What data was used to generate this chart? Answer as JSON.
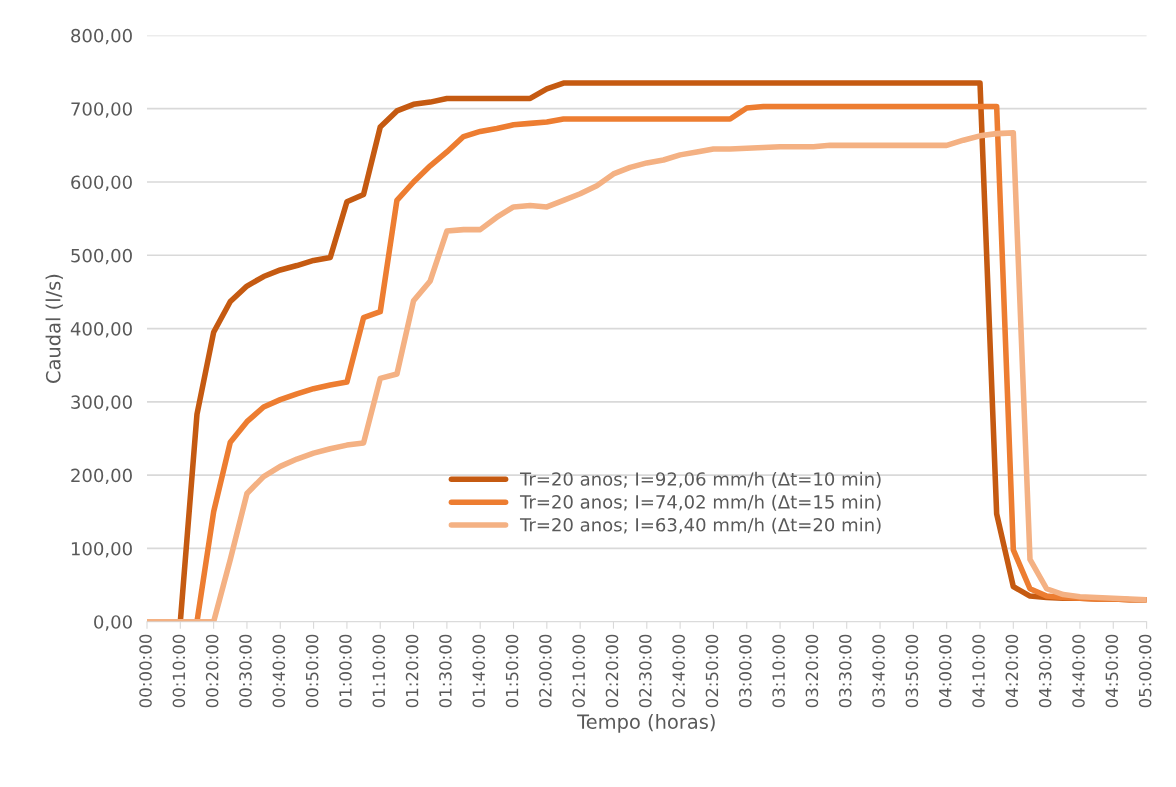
{
  "chart_data": {
    "type": "line",
    "xlabel": "Tempo (horas)",
    "ylabel": "Caudal (l/s)",
    "x": [
      0,
      0.0833,
      0.1667,
      0.25,
      0.3333,
      0.4167,
      0.5,
      0.5833,
      0.6667,
      0.75,
      0.8333,
      0.9167,
      1,
      1.0833,
      1.1667,
      1.25,
      1.3333,
      1.4167,
      1.5,
      1.5833,
      1.6667,
      1.75,
      1.8333,
      1.9167,
      2,
      2.0833,
      2.1667,
      2.25,
      2.3333,
      2.4167,
      2.5,
      2.5833,
      2.6667,
      2.75,
      2.8333,
      2.9167,
      3,
      3.0833,
      3.1667,
      3.25,
      3.3333,
      3.4167,
      3.5,
      3.5833,
      3.6667,
      3.75,
      3.8333,
      3.9167,
      4,
      4.0833,
      4.1667,
      4.25,
      4.3333,
      4.4167,
      4.5,
      4.5833,
      4.6667,
      4.75,
      4.8333,
      4.9167,
      5
    ],
    "series": [
      {
        "name": "Tr=20 anos; I=92,06 mm/h (Δt=10 min)",
        "color": "#c55a11",
        "values": [
          0,
          0,
          0,
          283,
          395,
          437,
          458,
          471,
          480,
          486,
          493,
          497,
          573,
          583,
          675,
          697,
          706,
          709,
          714,
          714,
          714,
          714,
          714,
          714,
          727,
          735,
          735,
          735,
          735,
          735,
          735,
          735,
          735,
          735,
          735,
          735,
          735,
          735,
          735,
          735,
          735,
          735,
          735,
          735,
          735,
          735,
          735,
          735,
          735,
          735,
          735,
          147,
          48,
          35,
          33,
          32,
          32,
          31,
          31,
          30,
          30
        ]
      },
      {
        "name": "Tr=20 anos; I=74,02 mm/h (Δt=15 min)",
        "color": "#ed7d31",
        "values": [
          0,
          0,
          0,
          0,
          150,
          245,
          273,
          293,
          303,
          311,
          318,
          323,
          327,
          415,
          423,
          575,
          600,
          622,
          641,
          662,
          669,
          673,
          678,
          680,
          682,
          686,
          686,
          686,
          686,
          686,
          686,
          686,
          686,
          686,
          686,
          686,
          701,
          703,
          703,
          703,
          703,
          703,
          703,
          703,
          703,
          703,
          703,
          703,
          703,
          703,
          703,
          703,
          98,
          45,
          35,
          33,
          32,
          31,
          31,
          30,
          30
        ]
      },
      {
        "name": "Tr=20 anos; I=63,40 mm/h (Δt=20 min)",
        "color": "#f4b183",
        "values": [
          0,
          0,
          0,
          0,
          0,
          85,
          175,
          198,
          212,
          222,
          230,
          236,
          241,
          244,
          332,
          338,
          438,
          465,
          533,
          535,
          535,
          552,
          566,
          568,
          566,
          575,
          584,
          595,
          611,
          620,
          626,
          630,
          637,
          641,
          645,
          645,
          646,
          647,
          648,
          648,
          648,
          650,
          650,
          650,
          650,
          650,
          650,
          650,
          650,
          657,
          663,
          666,
          667,
          85,
          45,
          37,
          34,
          33,
          32,
          31,
          30
        ]
      }
    ],
    "xlim": [
      0,
      5
    ],
    "xticks": [
      {
        "value": 0,
        "label": "00:00:00"
      },
      {
        "value": 0.1667,
        "label": "00:10:00"
      },
      {
        "value": 0.3333,
        "label": "00:20:00"
      },
      {
        "value": 0.5,
        "label": "00:30:00"
      },
      {
        "value": 0.6667,
        "label": "00:40:00"
      },
      {
        "value": 0.8333,
        "label": "00:50:00"
      },
      {
        "value": 1,
        "label": "01:00:00"
      },
      {
        "value": 1.1667,
        "label": "01:10:00"
      },
      {
        "value": 1.3333,
        "label": "01:20:00"
      },
      {
        "value": 1.5,
        "label": "01:30:00"
      },
      {
        "value": 1.6667,
        "label": "01:40:00"
      },
      {
        "value": 1.8333,
        "label": "01:50:00"
      },
      {
        "value": 2,
        "label": "02:00:00"
      },
      {
        "value": 2.1667,
        "label": "02:10:00"
      },
      {
        "value": 2.3333,
        "label": "02:20:00"
      },
      {
        "value": 2.5,
        "label": "02:30:00"
      },
      {
        "value": 2.6667,
        "label": "02:40:00"
      },
      {
        "value": 2.8333,
        "label": "02:50:00"
      },
      {
        "value": 3,
        "label": "03:00:00"
      },
      {
        "value": 3.1667,
        "label": "03:10:00"
      },
      {
        "value": 3.3333,
        "label": "03:20:00"
      },
      {
        "value": 3.5,
        "label": "03:30:00"
      },
      {
        "value": 3.6667,
        "label": "03:40:00"
      },
      {
        "value": 3.8333,
        "label": "03:50:00"
      },
      {
        "value": 4,
        "label": "04:00:00"
      },
      {
        "value": 4.1667,
        "label": "04:10:00"
      },
      {
        "value": 4.3333,
        "label": "04:20:00"
      },
      {
        "value": 4.5,
        "label": "04:30:00"
      },
      {
        "value": 4.6667,
        "label": "04:40:00"
      },
      {
        "value": 4.8333,
        "label": "04:50:00"
      },
      {
        "value": 5,
        "label": "05:00:00"
      }
    ],
    "ylim": [
      0,
      800
    ],
    "yticks": [
      {
        "value": 0,
        "label": "0,00"
      },
      {
        "value": 100,
        "label": "100,00"
      },
      {
        "value": 200,
        "label": "200,00"
      },
      {
        "value": 300,
        "label": "300,00"
      },
      {
        "value": 400,
        "label": "400,00"
      },
      {
        "value": 500,
        "label": "500,00"
      },
      {
        "value": 600,
        "label": "600,00"
      },
      {
        "value": 700,
        "label": "700,00"
      },
      {
        "value": 800,
        "label": "800,00"
      }
    ],
    "grid": "y",
    "legend": "bottom",
    "marker": "none",
    "line_style": "solid"
  }
}
